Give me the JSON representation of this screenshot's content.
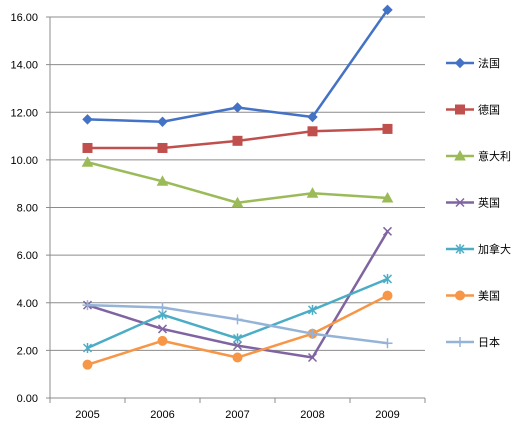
{
  "chart_data": {
    "type": "line",
    "categories": [
      "2005",
      "2006",
      "2007",
      "2008",
      "2009"
    ],
    "ylim": [
      0,
      16
    ],
    "ytick_labels": [
      "0.00",
      "2.00",
      "4.00",
      "6.00",
      "8.00",
      "10.00",
      "12.00",
      "14.00",
      "16.00"
    ],
    "ytick_values": [
      0,
      2,
      4,
      6,
      8,
      10,
      12,
      14,
      16
    ],
    "grid": "horizontal",
    "legend_position": "right",
    "series": [
      {
        "name": "法国",
        "color": "#4472c4",
        "marker": "diamond",
        "values": [
          11.7,
          11.6,
          12.2,
          11.8,
          16.3
        ]
      },
      {
        "name": "德国",
        "color": "#c0504d",
        "marker": "square",
        "values": [
          10.5,
          10.5,
          10.8,
          11.2,
          11.3
        ]
      },
      {
        "name": "意大利",
        "color": "#9bbb59",
        "marker": "triangle",
        "values": [
          9.9,
          9.1,
          8.2,
          8.6,
          8.4
        ]
      },
      {
        "name": "英国",
        "color": "#8064a2",
        "marker": "x",
        "values": [
          3.9,
          2.9,
          2.2,
          1.7,
          7.0
        ]
      },
      {
        "name": "加拿大",
        "color": "#4bacc6",
        "marker": "star",
        "values": [
          2.1,
          3.5,
          2.5,
          3.7,
          5.0
        ]
      },
      {
        "name": "美国",
        "color": "#f79646",
        "marker": "circle",
        "values": [
          1.4,
          2.4,
          1.7,
          2.7,
          4.3
        ]
      },
      {
        "name": "日本",
        "color": "#95b3d7",
        "marker": "plus",
        "values": [
          3.9,
          3.8,
          3.3,
          2.7,
          2.3
        ]
      }
    ]
  }
}
